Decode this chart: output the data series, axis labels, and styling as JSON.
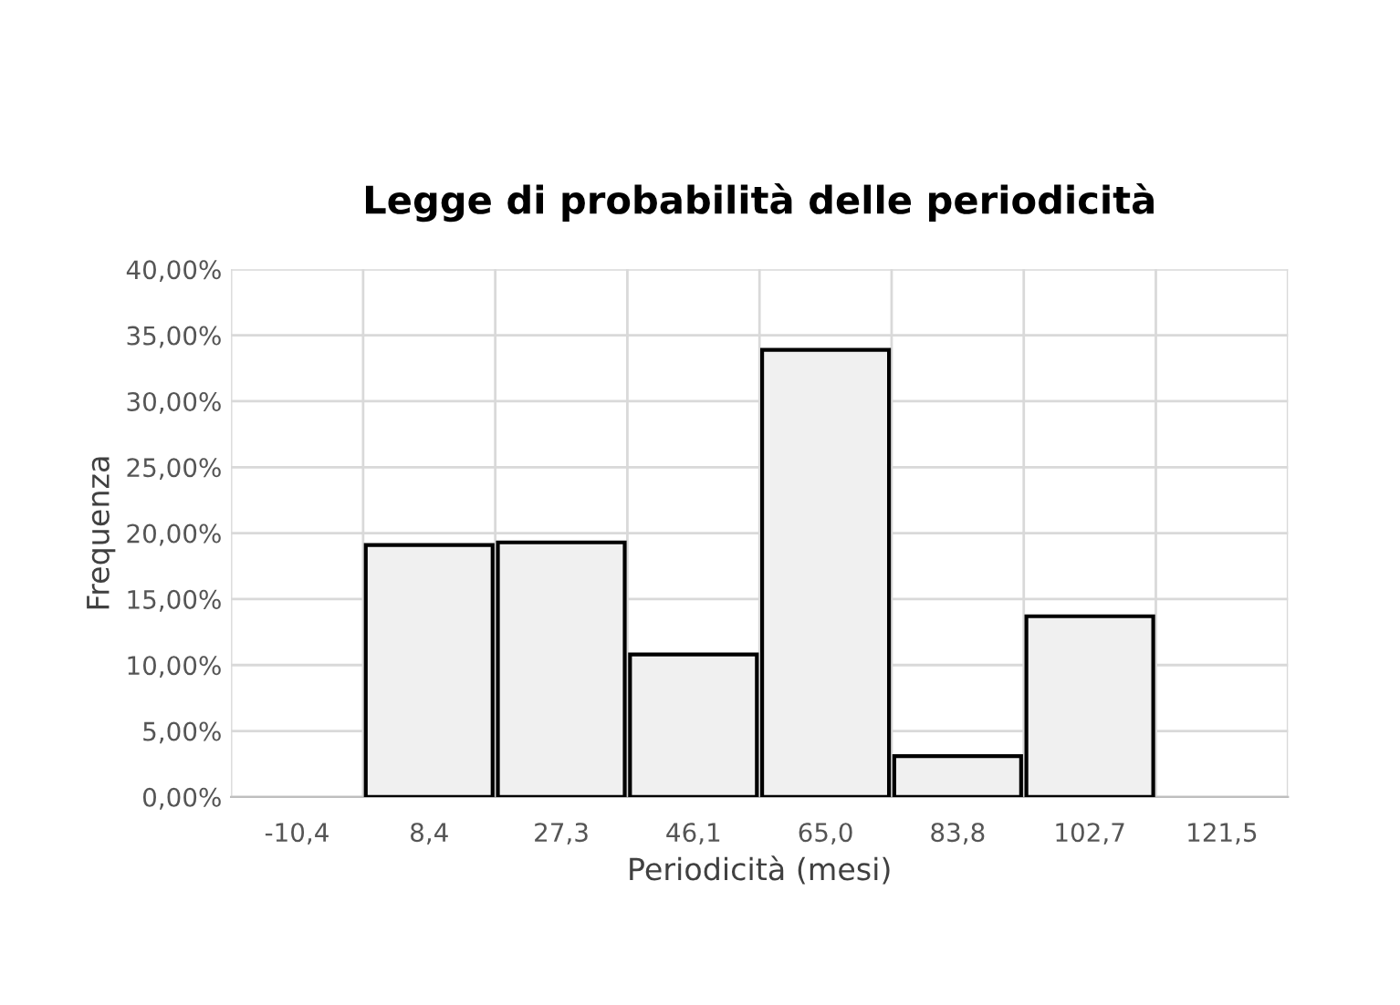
{
  "chart_data": {
    "type": "bar",
    "title": "Legge di probabilità delle periodicità",
    "xlabel": "Periodicità (mesi)",
    "ylabel": "Frequenza",
    "categories": [
      "-10,4",
      "8,4",
      "27,3",
      "46,1",
      "65,0",
      "83,8",
      "102,7",
      "121,5"
    ],
    "values": [
      0,
      19.1,
      19.3,
      10.8,
      33.9,
      3.1,
      13.7,
      0
    ],
    "color": "#f0f0f0",
    "ylim": [
      0,
      40
    ],
    "yticks": [
      {
        "value": 0,
        "label": "0,00%"
      },
      {
        "value": 5,
        "label": "5,00%"
      },
      {
        "value": 10,
        "label": "10,00%"
      },
      {
        "value": 15,
        "label": "15,00%"
      },
      {
        "value": 20,
        "label": "20,00%"
      },
      {
        "value": 25,
        "label": "25,00%"
      },
      {
        "value": 30,
        "label": "30,00%"
      },
      {
        "value": 35,
        "label": "35,00%"
      },
      {
        "value": 40,
        "label": "40,00%"
      }
    ],
    "grid": true
  }
}
